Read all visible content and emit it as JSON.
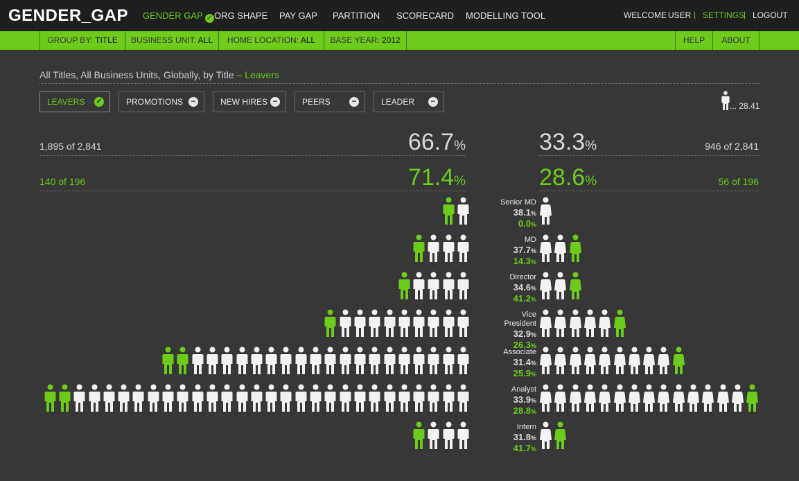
{
  "app": {
    "logo": "GENDER_GAP"
  },
  "nav": {
    "items": [
      {
        "label": "GENDER GAP",
        "active": true
      },
      {
        "label": "ORG SHAPE"
      },
      {
        "label": "PAY GAP"
      },
      {
        "label": "PARTITION"
      },
      {
        "label": "SCORECARD"
      },
      {
        "label": "MODELLING TOOL"
      }
    ],
    "welcome": "WELCOME",
    "user": "USER",
    "settings": "SETTINGS",
    "logout": "LOGOUT",
    "separator": "|"
  },
  "filters": {
    "group_by": {
      "label": "GROUP BY:",
      "value": "TITLE"
    },
    "business_unit": {
      "label": "BUSINESS UNIT:",
      "value": "ALL"
    },
    "home_location": {
      "label": "HOME LOCATION:",
      "value": "ALL"
    },
    "base_year": {
      "label": "BASE YEAR:",
      "value": "2012"
    },
    "help": "HELP",
    "about": "ABOUT"
  },
  "heading": {
    "text": "All Titles, All Business Units, Globally, by Title",
    "highlight": "– Leavers"
  },
  "metrics": [
    {
      "label": "LEAVERS",
      "selected": true
    },
    {
      "label": "PROMOTIONS"
    },
    {
      "label": "NEW HIRES"
    },
    {
      "label": "PEERS"
    },
    {
      "label": "LEADER"
    }
  ],
  "legend": {
    "value": "... 28.41"
  },
  "summary": {
    "left_total": "1,895 of 2,841",
    "left_pct": "66.7",
    "right_total": "946 of 2,841",
    "right_pct": "33.3",
    "left_sub": "140 of 196",
    "left_sub_pct": "71.4",
    "right_sub": "56 of 196",
    "right_sub_pct": "28.6",
    "unit": "%"
  },
  "colors": {
    "accent": "#6ccb1b",
    "figure": "#f2f2f2",
    "background": "#373737"
  },
  "chart_data": {
    "type": "pictogram",
    "scale": "1 figure = 28.41",
    "rows": [
      {
        "title": "Senior MD",
        "total_pct": "38.1",
        "sub_pct": "0.0",
        "male_figs": 2,
        "male_green": 1,
        "female_figs": 1,
        "female_green": 0
      },
      {
        "title": "MD",
        "total_pct": "37.7",
        "sub_pct": "14.3",
        "male_figs": 4,
        "male_green": 1,
        "female_figs": 3,
        "female_green": 1
      },
      {
        "title": "Director",
        "total_pct": "34.6",
        "sub_pct": "41.2",
        "male_figs": 5,
        "male_green": 1,
        "female_figs": 3,
        "female_green": 1
      },
      {
        "title": "Vice President",
        "total_pct": "32.9",
        "sub_pct": "26.3",
        "male_figs": 10,
        "male_green": 1,
        "female_figs": 6,
        "female_green": 1
      },
      {
        "title": "Associate",
        "total_pct": "31.4",
        "sub_pct": "25.9",
        "male_figs": 21,
        "male_green": 2,
        "female_figs": 10,
        "female_green": 1
      },
      {
        "title": "Analyst",
        "total_pct": "33.9",
        "sub_pct": "28.8",
        "male_figs": 29,
        "male_green": 2,
        "female_figs": 15,
        "female_green": 1
      },
      {
        "title": "Intern",
        "total_pct": "31.8",
        "sub_pct": "41.7",
        "male_figs": 4,
        "male_green": 1,
        "female_figs": 2,
        "female_green": 1
      }
    ]
  }
}
